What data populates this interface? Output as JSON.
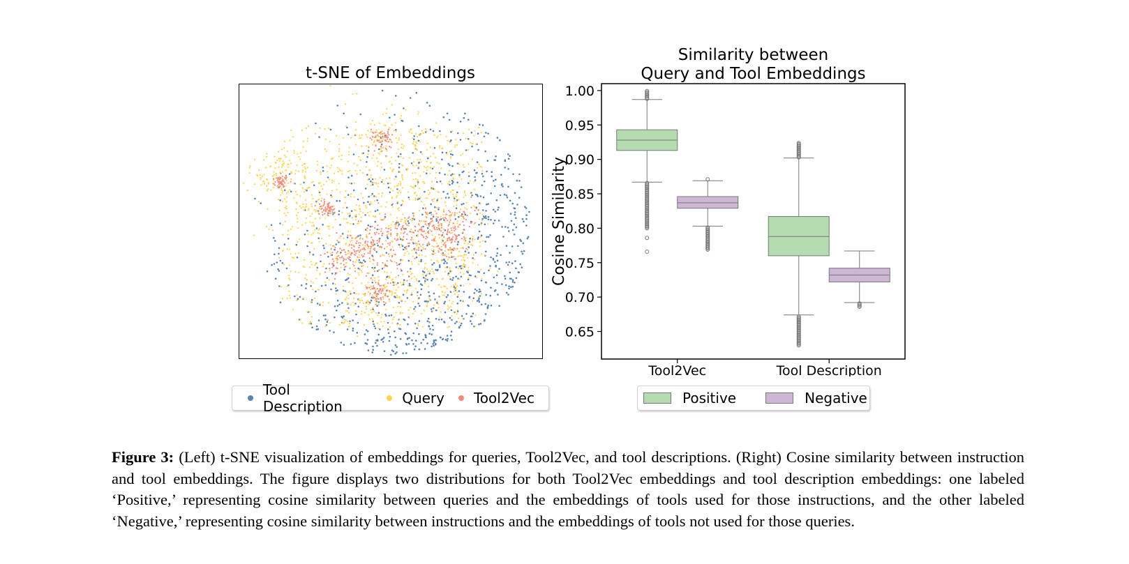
{
  "figure": {
    "left_title": "t-SNE of Embeddings",
    "right_title_line1": "Similarity between",
    "right_title_line2": "Query and Tool Embeddings",
    "tsne_legend": [
      {
        "label": "Tool Description",
        "color": "#5b84b1"
      },
      {
        "label": "Query",
        "color": "#ffd24d"
      },
      {
        "label": "Tool2Vec",
        "color": "#f58a7c"
      }
    ],
    "box_legend": [
      {
        "label": "Positive",
        "color": "#b5dbb0"
      },
      {
        "label": "Negative",
        "color": "#cdb6d6"
      }
    ],
    "caption_label": "Figure 3:",
    "caption_text": "(Left) t-SNE visualization of embeddings for queries, Tool2Vec, and tool descriptions. (Right) Cosine similarity between instruction and tool embeddings. The figure displays two distributions for both Tool2Vec embeddings and tool description embeddings: one labeled ‘Positive,’ representing cosine similarity between queries and the embeddings of tools used for those instructions, and the other labeled ‘Negative,’ representing cosine similarity between instructions and the embeddings of tools not used for those queries."
  },
  "chart_data": [
    {
      "type": "scatter",
      "title": "t-SNE of Embeddings",
      "xlabel": "",
      "ylabel": "",
      "axes_visible": false,
      "series": [
        {
          "name": "Tool Description",
          "color": "#5b84b1"
        },
        {
          "name": "Query",
          "color": "#ffd24d"
        },
        {
          "name": "Tool2Vec",
          "color": "#f58a7c"
        }
      ],
      "legend_position": "bottom"
    },
    {
      "type": "box",
      "title": "Similarity between\nQuery and Tool Embeddings",
      "xlabel": "",
      "ylabel": "Cosine Similarity",
      "categories": [
        "Tool2Vec",
        "Tool Description"
      ],
      "ylim": [
        0.61,
        1.01
      ],
      "yticks": [
        0.65,
        0.7,
        0.75,
        0.8,
        0.85,
        0.9,
        0.95,
        1.0
      ],
      "ytick_labels": [
        "0.65",
        "0.70",
        "0.75",
        "0.80",
        "0.85",
        "0.90",
        "0.95",
        "1.00"
      ],
      "series": [
        {
          "name": "Positive",
          "color": "#b5dbb0",
          "boxes": [
            {
              "whisker_low": 0.867,
              "q1": 0.913,
              "median": 0.928,
              "q3": 0.943,
              "whisker_high": 0.987,
              "outlier_low_range": [
                0.8,
                0.866
              ],
              "outlier_high_range": [
                0.988,
                1.0
              ],
              "extra_outliers": [
                0.786,
                0.766
              ]
            },
            {
              "whisker_low": 0.674,
              "q1": 0.76,
              "median": 0.788,
              "q3": 0.817,
              "whisker_high": 0.902,
              "outlier_low_range": [
                0.63,
                0.673
              ],
              "outlier_high_range": [
                0.903,
                0.925
              ],
              "extra_outliers": []
            }
          ]
        },
        {
          "name": "Negative",
          "color": "#cdb6d6",
          "boxes": [
            {
              "whisker_low": 0.803,
              "q1": 0.829,
              "median": 0.837,
              "q3": 0.846,
              "whisker_high": 0.869,
              "outlier_low_range": [
                0.769,
                0.802
              ],
              "outlier_high_range": [],
              "extra_outliers": [
                0.871
              ]
            },
            {
              "whisker_low": 0.692,
              "q1": 0.722,
              "median": 0.732,
              "q3": 0.742,
              "whisker_high": 0.767,
              "outlier_low_range": [
                0.686,
                0.691
              ],
              "outlier_high_range": [],
              "extra_outliers": []
            }
          ]
        }
      ],
      "legend_position": "bottom"
    }
  ]
}
